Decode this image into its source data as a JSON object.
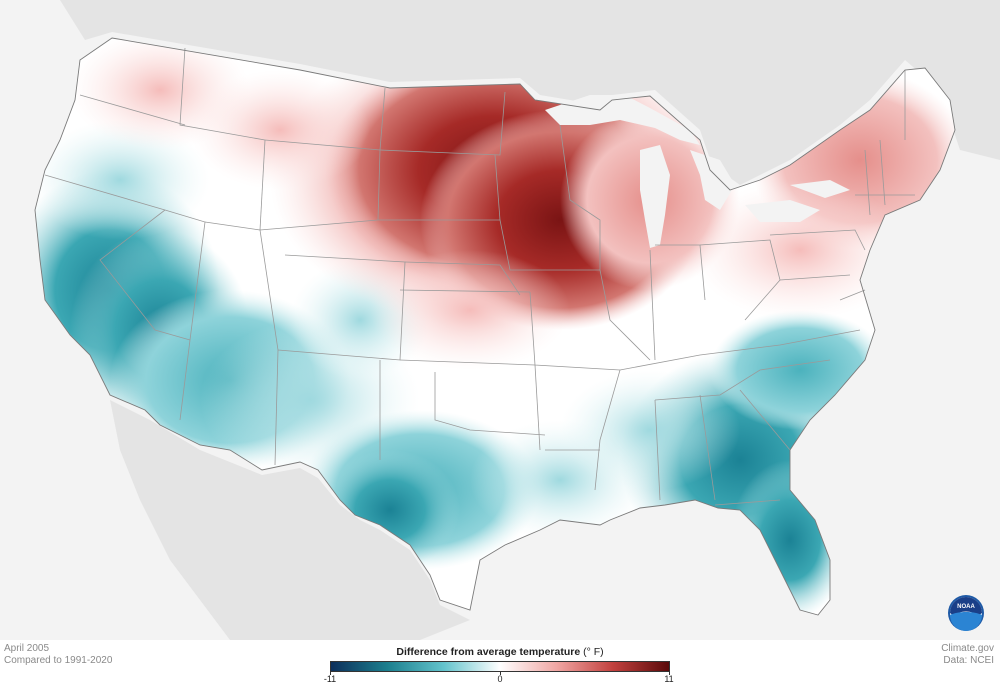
{
  "caption": {
    "period": "April 2005",
    "baseline": "Compared to 1991-2020",
    "source_site": "Climate.gov",
    "source_data": "Data: NCEI"
  },
  "legend": {
    "title": "Difference from average temperature",
    "units": "(° F)",
    "min_label": "-11",
    "mid_label": "0",
    "max_label": "11",
    "min_value": -11,
    "max_value": 11,
    "stops": [
      "#0d2f5b",
      "#1c7f8e",
      "#63c3cc",
      "#ffffff",
      "#f0a7a4",
      "#c2413e",
      "#5a0a0a"
    ]
  },
  "logo": {
    "text": "NOAA",
    "icon": "noaa-logo-icon"
  },
  "colors": {
    "background": "#f3f3f3",
    "land_other": "#dedede",
    "water": "#f3f3f3",
    "state_border": "#999999"
  },
  "anomaly_regions": {
    "warm": [
      "Northern Plains",
      "Upper Midwest",
      "Great Lakes",
      "Northeast",
      "Pacific Northwest"
    ],
    "cool": [
      "California",
      "Southwest",
      "Texas",
      "Southeast",
      "Florida"
    ]
  }
}
